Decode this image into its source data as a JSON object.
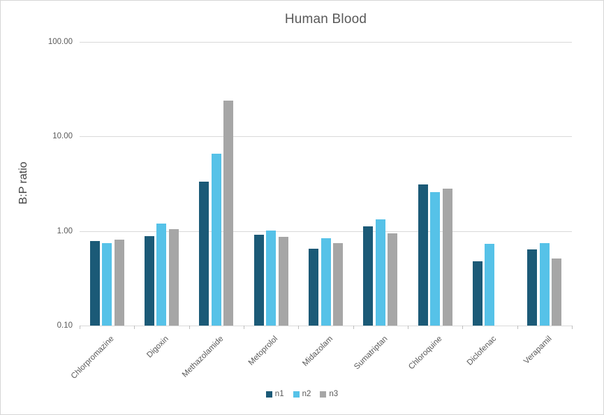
{
  "chart_data": {
    "type": "bar",
    "title": "Human Blood",
    "xlabel": "",
    "ylabel": "B:P ratio",
    "yscale": "log",
    "ylim": [
      0.1,
      100
    ],
    "grid": true,
    "legend_position": "bottom",
    "ytick_values": [
      100,
      10,
      1,
      0.1
    ],
    "ytick_labels": [
      "100.00",
      "10.00",
      "1.00",
      "0.10"
    ],
    "categories": [
      "Chlorpromazine",
      "Digoxin",
      "Methazolamide",
      "Metoprolol",
      "Midazolam",
      "Sumatriptan",
      "Chloroquine",
      "Diclofenac",
      "Verapamil"
    ],
    "series": [
      {
        "name": "n1",
        "color": "#1b5a77",
        "values": [
          0.79,
          0.88,
          3.35,
          0.92,
          0.65,
          1.12,
          3.1,
          0.48,
          0.64
        ]
      },
      {
        "name": "n2",
        "color": "#56c2e8",
        "values": [
          0.74,
          1.19,
          6.6,
          1.02,
          0.84,
          1.32,
          2.6,
          0.73,
          0.74
        ]
      },
      {
        "name": "n3",
        "color": "#a6a6a6",
        "values": [
          0.81,
          1.05,
          24,
          0.87,
          0.75,
          0.95,
          2.8,
          null,
          0.51
        ]
      }
    ],
    "colors": {
      "gridline": "#d9d9d9",
      "axis_tick": "#bfbfbf",
      "text": "#595959"
    }
  }
}
